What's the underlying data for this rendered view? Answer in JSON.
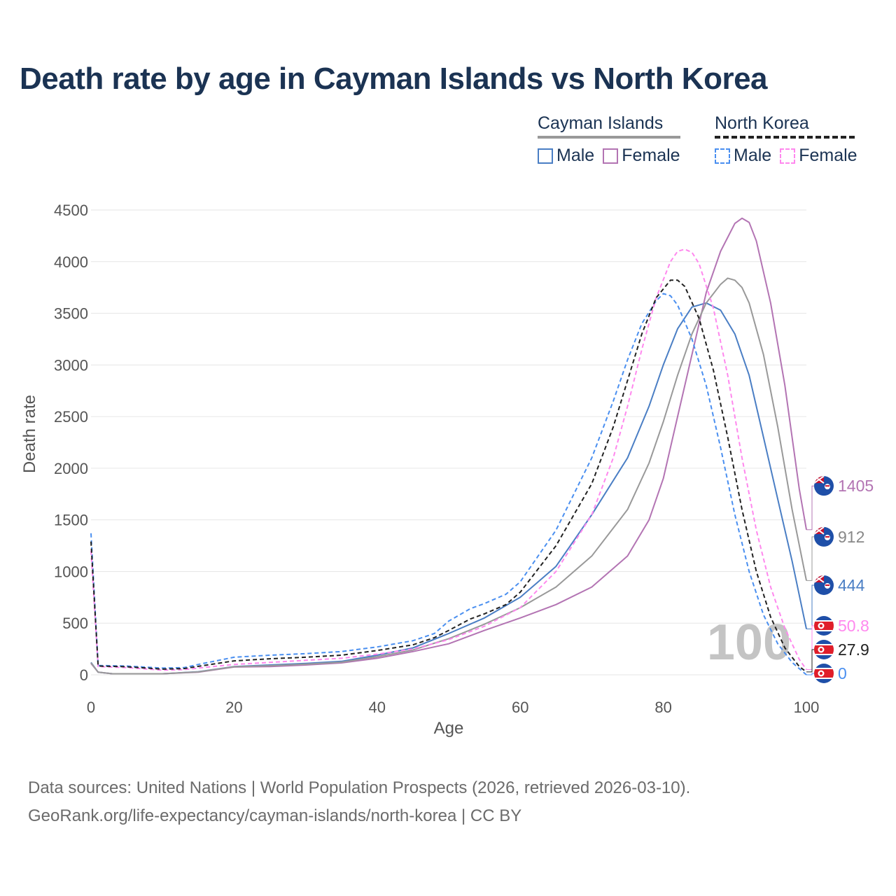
{
  "title": "Death rate by age in Cayman Islands vs North Korea",
  "legend": {
    "groups": [
      {
        "name": "Cayman Islands",
        "style": "solid",
        "items": [
          {
            "label": "Male",
            "color": "#4a7ec4"
          },
          {
            "label": "Female",
            "color": "#b374b3"
          }
        ]
      },
      {
        "name": "North Korea",
        "style": "dashed",
        "items": [
          {
            "label": "Male",
            "color": "#4a8ff0"
          },
          {
            "label": "Female",
            "color": "#ff88ee"
          }
        ]
      }
    ]
  },
  "footer": {
    "line1": "Data sources: United Nations | World Population Prospects (2026, retrieved 2026-03-10).",
    "line2": "GeoRank.org/life-expectancy/cayman-islands/north-korea | CC BY"
  },
  "chart_data": {
    "type": "line",
    "xlabel": "Age",
    "ylabel": "Death rate",
    "xlim": [
      0,
      100
    ],
    "ylim": [
      0,
      4500
    ],
    "xticks": [
      0,
      20,
      40,
      60,
      80,
      100
    ],
    "yticks": [
      0,
      500,
      1000,
      1500,
      2000,
      2500,
      3000,
      3500,
      4000,
      4500
    ],
    "watermark": "100",
    "series": [
      {
        "name": "Cayman Islands Male",
        "color": "#4a7ec4",
        "dash": false,
        "end_label": "444",
        "flag": "cayman",
        "points": [
          [
            0,
            120
          ],
          [
            1,
            25
          ],
          [
            3,
            10
          ],
          [
            5,
            10
          ],
          [
            10,
            10
          ],
          [
            15,
            30
          ],
          [
            20,
            80
          ],
          [
            25,
            95
          ],
          [
            30,
            110
          ],
          [
            35,
            130
          ],
          [
            40,
            190
          ],
          [
            45,
            260
          ],
          [
            50,
            400
          ],
          [
            55,
            550
          ],
          [
            60,
            750
          ],
          [
            65,
            1050
          ],
          [
            70,
            1550
          ],
          [
            75,
            2100
          ],
          [
            78,
            2600
          ],
          [
            80,
            3000
          ],
          [
            82,
            3350
          ],
          [
            84,
            3560
          ],
          [
            86,
            3600
          ],
          [
            88,
            3530
          ],
          [
            90,
            3300
          ],
          [
            92,
            2900
          ],
          [
            94,
            2300
          ],
          [
            96,
            1700
          ],
          [
            98,
            1100
          ],
          [
            100,
            444
          ]
        ]
      },
      {
        "name": "Cayman Islands Female",
        "color": "#b374b3",
        "dash": false,
        "end_label": "1405",
        "flag": "cayman",
        "points": [
          [
            0,
            110
          ],
          [
            1,
            25
          ],
          [
            3,
            10
          ],
          [
            5,
            10
          ],
          [
            10,
            10
          ],
          [
            15,
            25
          ],
          [
            20,
            75
          ],
          [
            25,
            80
          ],
          [
            30,
            95
          ],
          [
            35,
            115
          ],
          [
            40,
            160
          ],
          [
            45,
            225
          ],
          [
            50,
            300
          ],
          [
            55,
            430
          ],
          [
            60,
            550
          ],
          [
            65,
            680
          ],
          [
            70,
            850
          ],
          [
            75,
            1150
          ],
          [
            78,
            1500
          ],
          [
            80,
            1900
          ],
          [
            82,
            2500
          ],
          [
            84,
            3100
          ],
          [
            86,
            3700
          ],
          [
            88,
            4100
          ],
          [
            90,
            4370
          ],
          [
            91,
            4420
          ],
          [
            92,
            4380
          ],
          [
            93,
            4200
          ],
          [
            95,
            3600
          ],
          [
            97,
            2800
          ],
          [
            99,
            1800
          ],
          [
            100,
            1405
          ]
        ]
      },
      {
        "name": "Cayman Islands Total",
        "color": "#999999",
        "dash": false,
        "end_label": "912",
        "flag": "cayman",
        "points": [
          [
            0,
            115
          ],
          [
            1,
            25
          ],
          [
            3,
            10
          ],
          [
            5,
            10
          ],
          [
            10,
            10
          ],
          [
            15,
            28
          ],
          [
            20,
            78
          ],
          [
            25,
            88
          ],
          [
            30,
            102
          ],
          [
            35,
            122
          ],
          [
            40,
            175
          ],
          [
            45,
            240
          ],
          [
            50,
            350
          ],
          [
            55,
            490
          ],
          [
            60,
            650
          ],
          [
            65,
            850
          ],
          [
            70,
            1150
          ],
          [
            75,
            1600
          ],
          [
            78,
            2050
          ],
          [
            80,
            2450
          ],
          [
            82,
            2900
          ],
          [
            84,
            3300
          ],
          [
            86,
            3600
          ],
          [
            88,
            3780
          ],
          [
            89,
            3840
          ],
          [
            90,
            3820
          ],
          [
            91,
            3750
          ],
          [
            92,
            3600
          ],
          [
            94,
            3100
          ],
          [
            96,
            2400
          ],
          [
            98,
            1600
          ],
          [
            100,
            912
          ]
        ]
      },
      {
        "name": "North Korea Male",
        "color": "#4a8ff0",
        "dash": true,
        "end_label": "0",
        "flag": "northkorea",
        "points": [
          [
            0,
            1370
          ],
          [
            1,
            90
          ],
          [
            5,
            85
          ],
          [
            10,
            65
          ],
          [
            13,
            70
          ],
          [
            15,
            100
          ],
          [
            20,
            170
          ],
          [
            25,
            190
          ],
          [
            30,
            205
          ],
          [
            35,
            225
          ],
          [
            40,
            270
          ],
          [
            45,
            330
          ],
          [
            48,
            400
          ],
          [
            50,
            520
          ],
          [
            53,
            640
          ],
          [
            55,
            690
          ],
          [
            58,
            780
          ],
          [
            60,
            900
          ],
          [
            65,
            1400
          ],
          [
            70,
            2100
          ],
          [
            73,
            2650
          ],
          [
            75,
            3050
          ],
          [
            77,
            3400
          ],
          [
            79,
            3620
          ],
          [
            80,
            3690
          ],
          [
            81,
            3670
          ],
          [
            82,
            3580
          ],
          [
            84,
            3250
          ],
          [
            86,
            2800
          ],
          [
            88,
            2200
          ],
          [
            90,
            1550
          ],
          [
            92,
            1000
          ],
          [
            94,
            580
          ],
          [
            96,
            300
          ],
          [
            98,
            120
          ],
          [
            100,
            0
          ]
        ]
      },
      {
        "name": "North Korea Female",
        "color": "#ff88ee",
        "dash": true,
        "end_label": "50.8",
        "flag": "northkorea",
        "points": [
          [
            0,
            1200
          ],
          [
            1,
            80
          ],
          [
            5,
            70
          ],
          [
            10,
            45
          ],
          [
            13,
            50
          ],
          [
            15,
            65
          ],
          [
            20,
            100
          ],
          [
            25,
            120
          ],
          [
            30,
            140
          ],
          [
            35,
            160
          ],
          [
            40,
            200
          ],
          [
            45,
            250
          ],
          [
            50,
            340
          ],
          [
            55,
            470
          ],
          [
            60,
            650
          ],
          [
            65,
            1000
          ],
          [
            70,
            1550
          ],
          [
            73,
            2100
          ],
          [
            75,
            2600
          ],
          [
            77,
            3150
          ],
          [
            79,
            3650
          ],
          [
            81,
            4000
          ],
          [
            82,
            4100
          ],
          [
            83,
            4120
          ],
          [
            84,
            4090
          ],
          [
            85,
            3980
          ],
          [
            87,
            3550
          ],
          [
            89,
            2900
          ],
          [
            91,
            2100
          ],
          [
            93,
            1400
          ],
          [
            95,
            850
          ],
          [
            97,
            450
          ],
          [
            99,
            150
          ],
          [
            100,
            50.8
          ]
        ]
      },
      {
        "name": "North Korea Total",
        "color": "#222222",
        "dash": true,
        "end_label": "27.9",
        "flag": "northkorea",
        "points": [
          [
            0,
            1290
          ],
          [
            1,
            85
          ],
          [
            5,
            78
          ],
          [
            10,
            55
          ],
          [
            13,
            60
          ],
          [
            15,
            82
          ],
          [
            20,
            135
          ],
          [
            25,
            155
          ],
          [
            30,
            170
          ],
          [
            35,
            190
          ],
          [
            40,
            235
          ],
          [
            45,
            290
          ],
          [
            48,
            360
          ],
          [
            50,
            430
          ],
          [
            53,
            540
          ],
          [
            55,
            590
          ],
          [
            58,
            680
          ],
          [
            60,
            800
          ],
          [
            65,
            1250
          ],
          [
            70,
            1850
          ],
          [
            73,
            2400
          ],
          [
            75,
            2850
          ],
          [
            77,
            3300
          ],
          [
            79,
            3650
          ],
          [
            81,
            3820
          ],
          [
            82,
            3820
          ],
          [
            83,
            3760
          ],
          [
            85,
            3450
          ],
          [
            87,
            2950
          ],
          [
            89,
            2300
          ],
          [
            91,
            1600
          ],
          [
            93,
            1000
          ],
          [
            95,
            560
          ],
          [
            97,
            260
          ],
          [
            99,
            80
          ],
          [
            100,
            27.9
          ]
        ]
      }
    ]
  }
}
